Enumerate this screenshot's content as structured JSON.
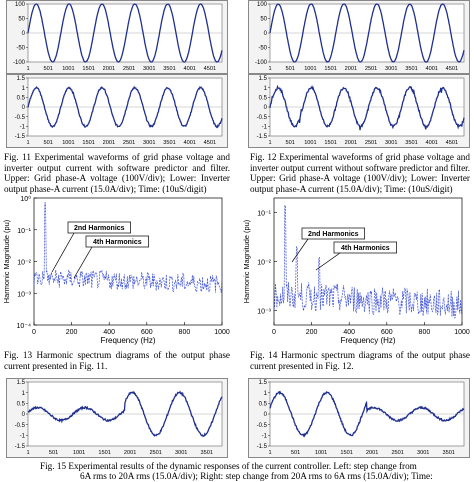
{
  "colors": {
    "signal": "#1f2f8f",
    "harmonic": "#3b4fd6",
    "frame_bg": "#f3f3f3"
  },
  "fig11": {
    "caption": "Fig. 11 Experimental waveforms of grid phase voltage and inverter output current with software predictor and filter. Upper: Grid phase-A voltage (100V/div); Lower: Inverter output phase-A current (15.0A/div); Time: (10uS/digit)",
    "upper": {
      "yticks": [
        "100",
        "50",
        "0",
        "-50",
        "-100"
      ]
    },
    "lower": {
      "yticks": [
        "1.5",
        "1",
        "0.5",
        "0",
        "-0.5",
        "-1",
        "-1.5"
      ]
    },
    "xticks": [
      "1",
      "501",
      "1001",
      "1501",
      "2001",
      "2501",
      "3001",
      "3501",
      "4001",
      "4501"
    ]
  },
  "fig12": {
    "caption": "Fig. 12 Experimental waveforms of grid phase voltage and inverter output current without software predictor and filter. Upper: Grid phase-A voltage (100V/div); Lower: Inverter output phase-A current (15.0A/div); Time: (10uS/digit)",
    "upper": {
      "yticks": [
        "100",
        "50",
        "0",
        "-50",
        "-100"
      ]
    },
    "lower": {
      "yticks": [
        "1.5",
        "1",
        "0.5",
        "0",
        "-0.5",
        "-1",
        "-1.5"
      ]
    },
    "xticks": [
      "1",
      "501",
      "1001",
      "1501",
      "2001",
      "2501",
      "3001",
      "3501",
      "4001",
      "4501"
    ]
  },
  "fig13": {
    "caption": "Fig. 13 Harmonic spectrum diagrams of the output phase current presented in Fig. 11.",
    "ylabel": "Harmonic Magnitude (pu)",
    "xlabel": "Frequency (Hz)",
    "xticks": [
      "0",
      "200",
      "400",
      "600",
      "800",
      "1000"
    ],
    "yticks": [
      "10⁰",
      "10⁻¹",
      "10⁻²",
      "10⁻³",
      "10⁻⁴"
    ],
    "ann2": "2nd Harmonics",
    "ann4": "4th Harmonics"
  },
  "fig14": {
    "caption": "Fig. 14 Harmonic spectrum diagrams of the output phase current presented in Fig. 12.",
    "ylabel": "Harmonic Magnitude (pu)",
    "xlabel": "Frequency (Hz)",
    "xticks": [
      "0",
      "200",
      "400",
      "600",
      "800",
      "1000"
    ],
    "yticks": [
      "10⁻¹",
      "10⁻²",
      "10⁻³"
    ],
    "ann2": "2nd Harmonics",
    "ann4": "4th Harmonics"
  },
  "fig15": {
    "caption_line1": "Fig. 15 Experimental results of the dynamic responses of the current controller. Left: step change from",
    "caption_line2": "6A rms to 20A rms (15.0A/div); Right: step change from 20A rms to 6A rms (15.0A/div); Time:",
    "yticks": [
      "1.5",
      "1",
      "0.5",
      "0",
      "-0.5",
      "-1",
      "-1.5"
    ],
    "xticks": [
      "1",
      "501",
      "1001",
      "1501",
      "2001",
      "2501",
      "3001",
      "3501"
    ]
  },
  "chart_data": [
    {
      "type": "line",
      "name": "fig11-upper",
      "ylim": [
        -100,
        100
      ],
      "xlim": [
        1,
        4800
      ],
      "amplitude": 100,
      "cycles": 5.9
    },
    {
      "type": "line",
      "name": "fig11-lower",
      "ylim": [
        -1.5,
        1.5
      ],
      "xlim": [
        1,
        4800
      ],
      "amplitude": 1.0,
      "cycles": 5.9
    },
    {
      "type": "line",
      "name": "fig12-upper",
      "ylim": [
        -100,
        100
      ],
      "xlim": [
        1,
        4800
      ],
      "amplitude": 100,
      "cycles": 5.9
    },
    {
      "type": "line",
      "name": "fig12-lower",
      "ylim": [
        -1.5,
        1.5
      ],
      "xlim": [
        1,
        4800
      ],
      "amplitude": 1.0,
      "cycles": 5.9
    },
    {
      "type": "line",
      "name": "fig13-spectrum",
      "log_y": true,
      "xlim": [
        0,
        1000
      ],
      "ylim": [
        0.0001,
        1
      ],
      "fundamental_hz": 60,
      "noise_floor": 0.003
    },
    {
      "type": "line",
      "name": "fig14-spectrum",
      "log_y": true,
      "xlim": [
        0,
        1000
      ],
      "ylim": [
        0.0005,
        0.2
      ],
      "fundamental_hz": 60,
      "peaks": [
        {
          "hz": 120,
          "value": 0.02
        },
        {
          "hz": 240,
          "value": 0.012
        }
      ]
    },
    {
      "type": "line",
      "name": "fig15-left",
      "ylim": [
        -1.5,
        1.5
      ],
      "xlim": [
        1,
        3800
      ],
      "step_from": 0.3,
      "step_to": 1.0
    },
    {
      "type": "line",
      "name": "fig15-right",
      "ylim": [
        -1.5,
        1.5
      ],
      "xlim": [
        1,
        3800
      ],
      "step_from": 1.0,
      "step_to": 0.3
    }
  ]
}
